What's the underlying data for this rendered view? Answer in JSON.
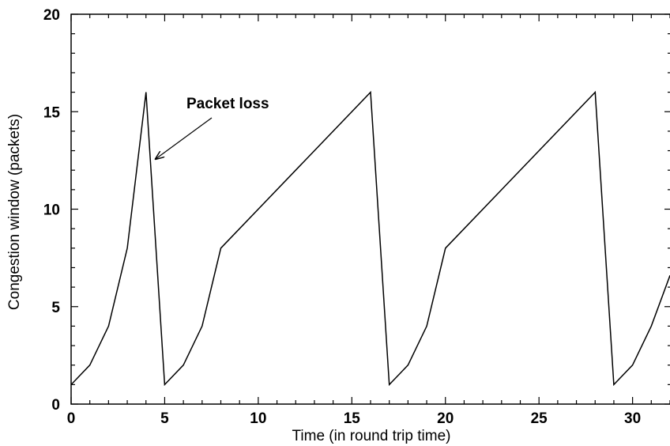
{
  "chart_data": {
    "type": "line",
    "title": "",
    "xlabel": "Time (in round trip time)",
    "ylabel": "Congestion window (packets)",
    "xlim": [
      0,
      32
    ],
    "ylim": [
      0,
      20
    ],
    "x_ticks": [
      "0",
      "5",
      "10",
      "15",
      "20",
      "25",
      "30"
    ],
    "y_ticks": [
      "0",
      "5",
      "10",
      "15",
      "20"
    ],
    "grid": false,
    "legend": "none",
    "series": [
      {
        "x": [
          0,
          1,
          2,
          3,
          4,
          5,
          6,
          7,
          8,
          16,
          17,
          18,
          19,
          20,
          28,
          29,
          30,
          31,
          32
        ],
        "y": [
          1,
          2,
          4,
          8,
          16,
          1,
          2,
          4,
          8,
          16,
          1,
          2,
          4,
          8,
          16,
          1,
          2,
          4,
          6.6
        ]
      }
    ],
    "annotations": [
      {
        "text": "Packet loss",
        "x": 4.4,
        "y": 12.5
      }
    ],
    "colors": {
      "line": "#000000",
      "axis": "#000000"
    }
  }
}
